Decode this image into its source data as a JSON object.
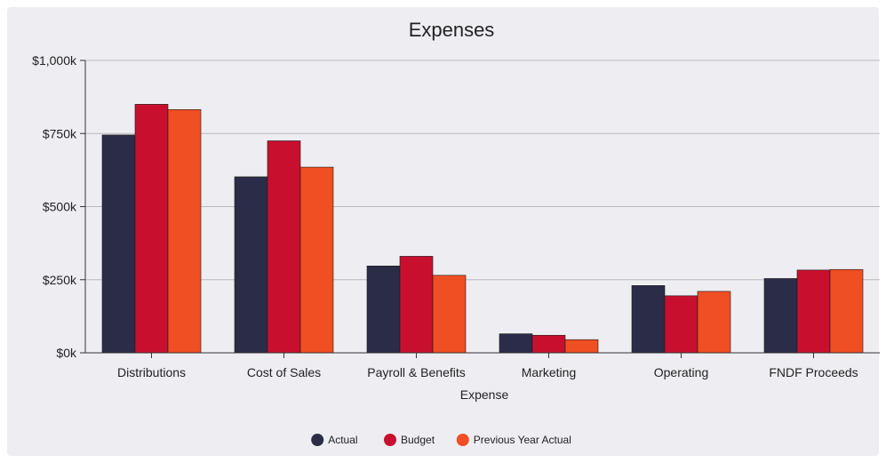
{
  "chart_data": {
    "type": "bar",
    "title": "Expenses",
    "xlabel": "Expense",
    "ylabel": "",
    "ylim": [
      0,
      1000
    ],
    "y_ticks": [
      0,
      250,
      500,
      750,
      1000
    ],
    "y_tick_labels": [
      "$0k",
      "$250k",
      "$500k",
      "$750k",
      "$1,000k"
    ],
    "categories": [
      "Distributions",
      "Cost of Sales",
      "Payroll & Benefits",
      "Marketing",
      "Operating",
      "FNDF Proceeds"
    ],
    "series": [
      {
        "name": "Actual",
        "color": "#2b2d48",
        "values": [
          745,
          602,
          297,
          65,
          230,
          254
        ]
      },
      {
        "name": "Budget",
        "color": "#c8102e",
        "values": [
          850,
          725,
          330,
          60,
          195,
          283
        ]
      },
      {
        "name": "Previous Year Actual",
        "color": "#f04e23",
        "values": [
          832,
          635,
          265,
          45,
          210,
          285
        ]
      }
    ],
    "grid": true,
    "legend_position": "bottom-center"
  }
}
